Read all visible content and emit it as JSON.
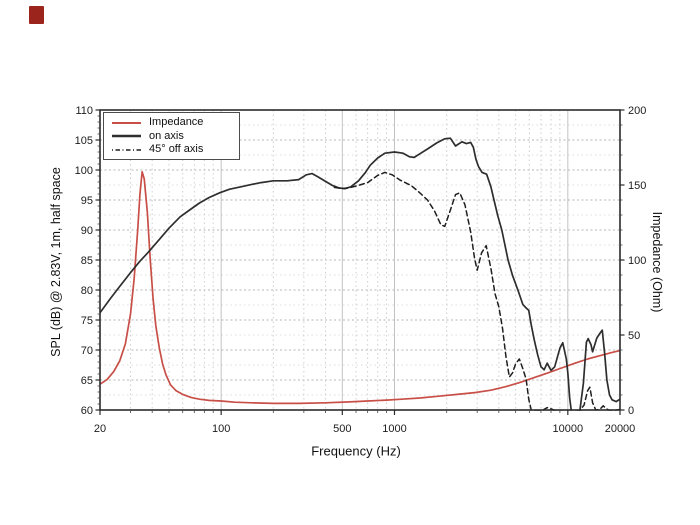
{
  "page": {
    "background": "#ffffff"
  },
  "brand_mark": {
    "color": "#9b251c"
  },
  "chart_data": {
    "type": "line",
    "title": "",
    "x_axis": {
      "label": "Frequency (Hz)",
      "scale": "log",
      "min": 20,
      "max": 20000,
      "labeled_ticks": [
        20,
        100,
        500,
        1000,
        10000,
        20000
      ],
      "tick_labels": [
        "20",
        "100",
        "500",
        "1000",
        "10000",
        "20000"
      ]
    },
    "y_axis_left": {
      "label": "SPL (dB) @ 2.83V, 1m, half space",
      "min": 60,
      "max": 110,
      "tick_step": 5,
      "tick_labels": [
        "60",
        "65",
        "70",
        "75",
        "80",
        "85",
        "90",
        "95",
        "100",
        "105",
        "110"
      ]
    },
    "y_axis_right": {
      "label": "Impedance (Ohm)",
      "min": 0,
      "max": 200,
      "tick_step": 50,
      "tick_labels": [
        "0",
        "50",
        "100",
        "150",
        "200"
      ]
    },
    "grid": true,
    "legend": {
      "position": "upper-left",
      "entries": [
        {
          "label": "Impedance",
          "color": "#c84f47",
          "style": "solid"
        },
        {
          "label": "on axis",
          "color": "#2e2e2e",
          "style": "solid"
        },
        {
          "label": "45° off axis",
          "color": "#1f1f1f",
          "style": "dashed"
        }
      ]
    },
    "series": [
      {
        "name": "Impedance",
        "axis": "right",
        "unit": "Ohm",
        "color": "#c84f47",
        "style": "solid",
        "points": [
          [
            20,
            17.2
          ],
          [
            22,
            20.4
          ],
          [
            24,
            25.6
          ],
          [
            26,
            32.8
          ],
          [
            28,
            44
          ],
          [
            30,
            64
          ],
          [
            31.5,
            88
          ],
          [
            33,
            120
          ],
          [
            34,
            144
          ],
          [
            35,
            158.8
          ],
          [
            36,
            154
          ],
          [
            37.5,
            132
          ],
          [
            39,
            100
          ],
          [
            40.5,
            74
          ],
          [
            42,
            56
          ],
          [
            44,
            41.2
          ],
          [
            46,
            30.4
          ],
          [
            48,
            23.6
          ],
          [
            51,
            16.8
          ],
          [
            55,
            12.8
          ],
          [
            60,
            10.4
          ],
          [
            67,
            8.4
          ],
          [
            75,
            7.2
          ],
          [
            85,
            6.4
          ],
          [
            100,
            6.0
          ],
          [
            120,
            5.2
          ],
          [
            150,
            4.8
          ],
          [
            200,
            4.4
          ],
          [
            280,
            4.4
          ],
          [
            400,
            4.8
          ],
          [
            550,
            5.4
          ],
          [
            700,
            6.0
          ],
          [
            900,
            6.6
          ],
          [
            1100,
            7.2
          ],
          [
            1400,
            8.0
          ],
          [
            1800,
            9.2
          ],
          [
            2300,
            10.4
          ],
          [
            2900,
            11.6
          ],
          [
            3600,
            13.2
          ],
          [
            4400,
            15.6
          ],
          [
            5300,
            18.4
          ],
          [
            6400,
            21.6
          ],
          [
            7700,
            24.8
          ],
          [
            9200,
            28.0
          ],
          [
            11000,
            31.2
          ],
          [
            13000,
            34.0
          ],
          [
            15500,
            36.4
          ],
          [
            18000,
            38.4
          ],
          [
            20000,
            39.6
          ]
        ]
      },
      {
        "name": "on axis",
        "axis": "left",
        "unit": "dB",
        "color": "#2e2e2e",
        "style": "solid",
        "points": [
          [
            20,
            76.2
          ],
          [
            23,
            78.6
          ],
          [
            26,
            80.6
          ],
          [
            30,
            82.9
          ],
          [
            34,
            84.8
          ],
          [
            38,
            86.3
          ],
          [
            43,
            88.1
          ],
          [
            50,
            90.3
          ],
          [
            58,
            92.2
          ],
          [
            67,
            93.5
          ],
          [
            75,
            94.5
          ],
          [
            85,
            95.4
          ],
          [
            98,
            96.2
          ],
          [
            112,
            96.8
          ],
          [
            130,
            97.2
          ],
          [
            150,
            97.6
          ],
          [
            170,
            97.9
          ],
          [
            200,
            98.2
          ],
          [
            240,
            98.2
          ],
          [
            280,
            98.4
          ],
          [
            310,
            99.2
          ],
          [
            335,
            99.4
          ],
          [
            360,
            98.9
          ],
          [
            400,
            98.1
          ],
          [
            440,
            97.4
          ],
          [
            480,
            97.0
          ],
          [
            520,
            96.9
          ],
          [
            560,
            97.2
          ],
          [
            620,
            98.2
          ],
          [
            680,
            99.6
          ],
          [
            725,
            100.8
          ],
          [
            800,
            102.0
          ],
          [
            880,
            102.8
          ],
          [
            1000,
            103.0
          ],
          [
            1120,
            102.8
          ],
          [
            1220,
            102.2
          ],
          [
            1300,
            102.1
          ],
          [
            1400,
            102.7
          ],
          [
            1550,
            103.5
          ],
          [
            1750,
            104.5
          ],
          [
            1950,
            105.2
          ],
          [
            2100,
            105.3
          ],
          [
            2250,
            104.0
          ],
          [
            2450,
            104.7
          ],
          [
            2600,
            104.4
          ],
          [
            2750,
            104.6
          ],
          [
            2850,
            103.8
          ],
          [
            2950,
            101.8
          ],
          [
            3050,
            100.6
          ],
          [
            3200,
            99.6
          ],
          [
            3400,
            99.3
          ],
          [
            3600,
            97.2
          ],
          [
            3750,
            95.0
          ],
          [
            3950,
            92.3
          ],
          [
            4160,
            90.0
          ],
          [
            4520,
            85.0
          ],
          [
            4800,
            82.4
          ],
          [
            5150,
            80.0
          ],
          [
            5500,
            77.6
          ],
          [
            5750,
            77.0
          ],
          [
            5950,
            76.6
          ],
          [
            6150,
            74.2
          ],
          [
            6400,
            71.7
          ],
          [
            6700,
            69.2
          ],
          [
            7000,
            67.2
          ],
          [
            7300,
            66.7
          ],
          [
            7600,
            67.8
          ],
          [
            8000,
            66.6
          ],
          [
            8400,
            67.2
          ],
          [
            9000,
            70.3
          ],
          [
            9350,
            71.2
          ],
          [
            9800,
            68.5
          ],
          [
            10000,
            66.2
          ],
          [
            10250,
            62.0
          ],
          [
            10500,
            59.6
          ],
          [
            11000,
            59.5
          ],
          [
            11700,
            59.6
          ],
          [
            12300,
            64.5
          ],
          [
            12800,
            71.3
          ],
          [
            13100,
            71.9
          ],
          [
            13600,
            70.9
          ],
          [
            13900,
            69.7
          ],
          [
            14700,
            72.0
          ],
          [
            15500,
            73.0
          ],
          [
            15800,
            73.3
          ],
          [
            16300,
            69.5
          ],
          [
            16800,
            65.0
          ],
          [
            17400,
            62.5
          ],
          [
            18000,
            61.7
          ],
          [
            19000,
            61.4
          ],
          [
            20000,
            61.8
          ]
        ]
      },
      {
        "name": "45° off axis",
        "axis": "left",
        "unit": "dB",
        "color": "#1f1f1f",
        "style": "dashed",
        "points": [
          [
            450,
            97.1
          ],
          [
            500,
            96.9
          ],
          [
            560,
            97.1
          ],
          [
            630,
            97.5
          ],
          [
            700,
            97.9
          ],
          [
            800,
            99.1
          ],
          [
            880,
            99.6
          ],
          [
            970,
            99.2
          ],
          [
            1080,
            98.3
          ],
          [
            1250,
            97.4
          ],
          [
            1400,
            96.2
          ],
          [
            1550,
            95.0
          ],
          [
            1700,
            93.2
          ],
          [
            1850,
            90.9
          ],
          [
            1950,
            90.6
          ],
          [
            2100,
            93.3
          ],
          [
            2250,
            95.9
          ],
          [
            2380,
            96.2
          ],
          [
            2550,
            94.2
          ],
          [
            2750,
            89.7
          ],
          [
            2900,
            85.2
          ],
          [
            3000,
            83.3
          ],
          [
            3180,
            86.2
          ],
          [
            3380,
            87.4
          ],
          [
            3600,
            83.6
          ],
          [
            3800,
            79.4
          ],
          [
            4000,
            77.2
          ],
          [
            4200,
            73.6
          ],
          [
            4400,
            68.8
          ],
          [
            4600,
            65.5
          ],
          [
            4800,
            66.2
          ],
          [
            5000,
            67.7
          ],
          [
            5250,
            68.5
          ],
          [
            5500,
            66.9
          ],
          [
            5750,
            65.1
          ],
          [
            5950,
            61.8
          ],
          [
            6150,
            60.0
          ],
          [
            6700,
            59.8
          ],
          [
            7200,
            60.0
          ],
          [
            7600,
            60.4
          ],
          [
            8000,
            60.2
          ],
          [
            8600,
            59.8
          ],
          [
            9500,
            59.7
          ],
          [
            10500,
            59.7
          ],
          [
            11600,
            59.8
          ],
          [
            12400,
            60.8
          ],
          [
            13000,
            63.2
          ],
          [
            13400,
            63.8
          ],
          [
            13900,
            61.2
          ],
          [
            14500,
            60.0
          ],
          [
            15300,
            60.1
          ],
          [
            16000,
            60.7
          ],
          [
            16700,
            60.2
          ],
          [
            17500,
            59.9
          ],
          [
            18500,
            59.9
          ],
          [
            20000,
            60.1
          ]
        ]
      }
    ]
  }
}
